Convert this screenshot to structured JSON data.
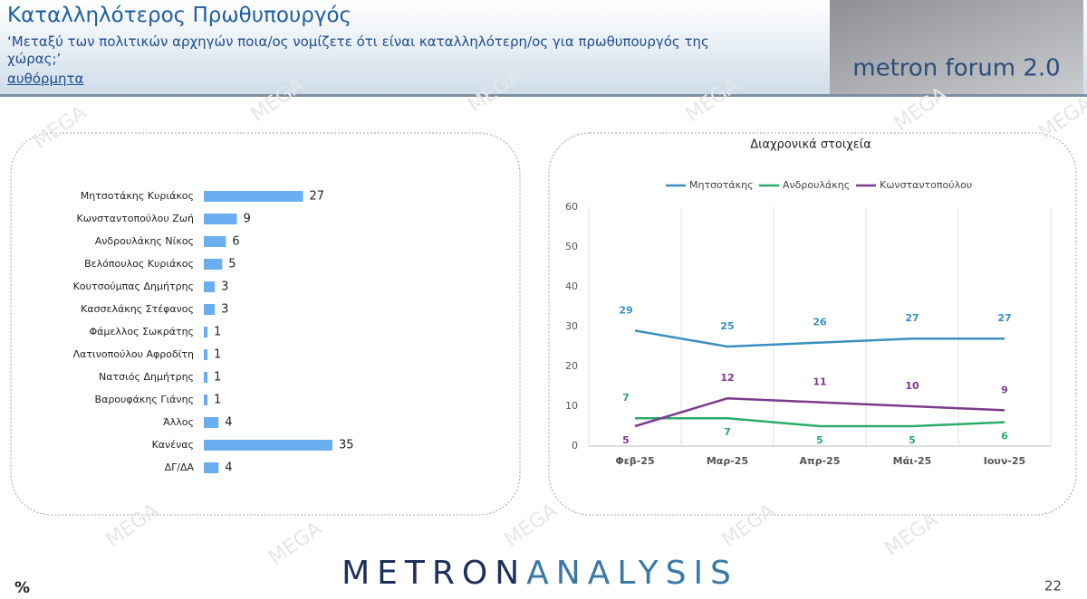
{
  "header": {
    "title": "Καταλληλότερος Πρωθυπουργός",
    "question": "‘Μεταξύ των πολιτικών αρχηγών ποια/ος νομίζετε ότι είναι καταλληλότερη/ος για πρωθυπουργός της χώρας;’",
    "note": "αυθόρμητα",
    "logo": "metron forum 2.0"
  },
  "watermark": "MEGA",
  "chart_data": [
    {
      "type": "bar",
      "orientation": "horizontal",
      "color": "#6aaef0",
      "categories": [
        "Μητσοτάκης Κυριάκος",
        "Κωνσταντοπούλου Ζωή",
        "Ανδρουλάκης Νίκος",
        "Βελόπουλος Κυριάκος",
        "Κουτσούμπας Δημήτρης",
        "Κασσελάκης Στέφανος",
        "Φάμελλος Σωκράτης",
        "Λατινοπούλου Αφροδίτη",
        "Νατσιός Δημήτρης",
        "Βαρουφάκης Γιάνης",
        "Άλλος",
        "Κανένας",
        "ΔΓ/ΔΑ"
      ],
      "values": [
        27,
        9,
        6,
        5,
        3,
        3,
        1,
        1,
        1,
        1,
        4,
        35,
        4
      ]
    },
    {
      "type": "line",
      "title": "Διαχρονικά στοιχεία",
      "categories": [
        "Φεβ-25",
        "Μαρ-25",
        "Απρ-25",
        "Μάι-25",
        "Ιουν-25"
      ],
      "series": [
        {
          "name": "Μητσοτάκης",
          "color": "#3a8fc1",
          "values": [
            29,
            25,
            26,
            27,
            27
          ]
        },
        {
          "name": "Ανδρουλάκης",
          "color": "#2bab6b",
          "values": [
            7,
            7,
            5,
            5,
            6
          ]
        },
        {
          "name": "Κωνσταντοπούλου",
          "color": "#7b3a8c",
          "values": [
            5,
            12,
            11,
            10,
            9
          ]
        }
      ],
      "ylim": [
        0,
        60
      ],
      "yticks": [
        0,
        10,
        20,
        30,
        40,
        50,
        60
      ],
      "grid": true,
      "legend": "top"
    }
  ],
  "footer": {
    "brand_1": "METRON",
    "brand_2": "ANALYSIS",
    "unit": "%",
    "page": "22"
  }
}
